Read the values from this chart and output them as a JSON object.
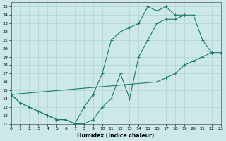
{
  "xlabel": "Humidex (Indice chaleur)",
  "xlim": [
    0,
    23
  ],
  "ylim": [
    11,
    25.5
  ],
  "xticks": [
    0,
    1,
    2,
    3,
    4,
    5,
    6,
    7,
    8,
    9,
    10,
    11,
    12,
    13,
    14,
    15,
    16,
    17,
    18,
    19,
    20,
    21,
    22,
    23
  ],
  "yticks": [
    11,
    12,
    13,
    14,
    15,
    16,
    17,
    18,
    19,
    20,
    21,
    22,
    23,
    24,
    25
  ],
  "bg_color": "#cce8e8",
  "line_color": "#1a7a6e",
  "grid_color": "#b8d8d8",
  "lines": [
    {
      "x": [
        0,
        1,
        2,
        3,
        4,
        5,
        6,
        7,
        8,
        9,
        10,
        11,
        12,
        13,
        14,
        15,
        16,
        17,
        18,
        19,
        20,
        21,
        22
      ],
      "y": [
        14.5,
        13.5,
        13,
        12.5,
        12,
        11.5,
        11.5,
        11,
        11,
        11.5,
        13,
        14,
        17,
        14,
        19,
        21,
        23,
        23.5,
        23.5,
        24,
        24,
        21,
        19.5
      ]
    },
    {
      "x": [
        0,
        1,
        2,
        3,
        4,
        5,
        6,
        7,
        8,
        9,
        10,
        11,
        12,
        13,
        14,
        15,
        16,
        17,
        18,
        19
      ],
      "y": [
        14.5,
        13.5,
        13,
        12.5,
        12,
        11.5,
        11.5,
        11,
        13,
        14.5,
        17,
        21,
        22,
        22.5,
        23,
        25,
        24.5,
        25,
        24,
        24
      ]
    },
    {
      "x": [
        0,
        16,
        17,
        18,
        19,
        20,
        21,
        22,
        23
      ],
      "y": [
        14.5,
        16,
        16.5,
        17,
        18,
        18.5,
        19,
        19.5,
        19.5
      ]
    }
  ]
}
